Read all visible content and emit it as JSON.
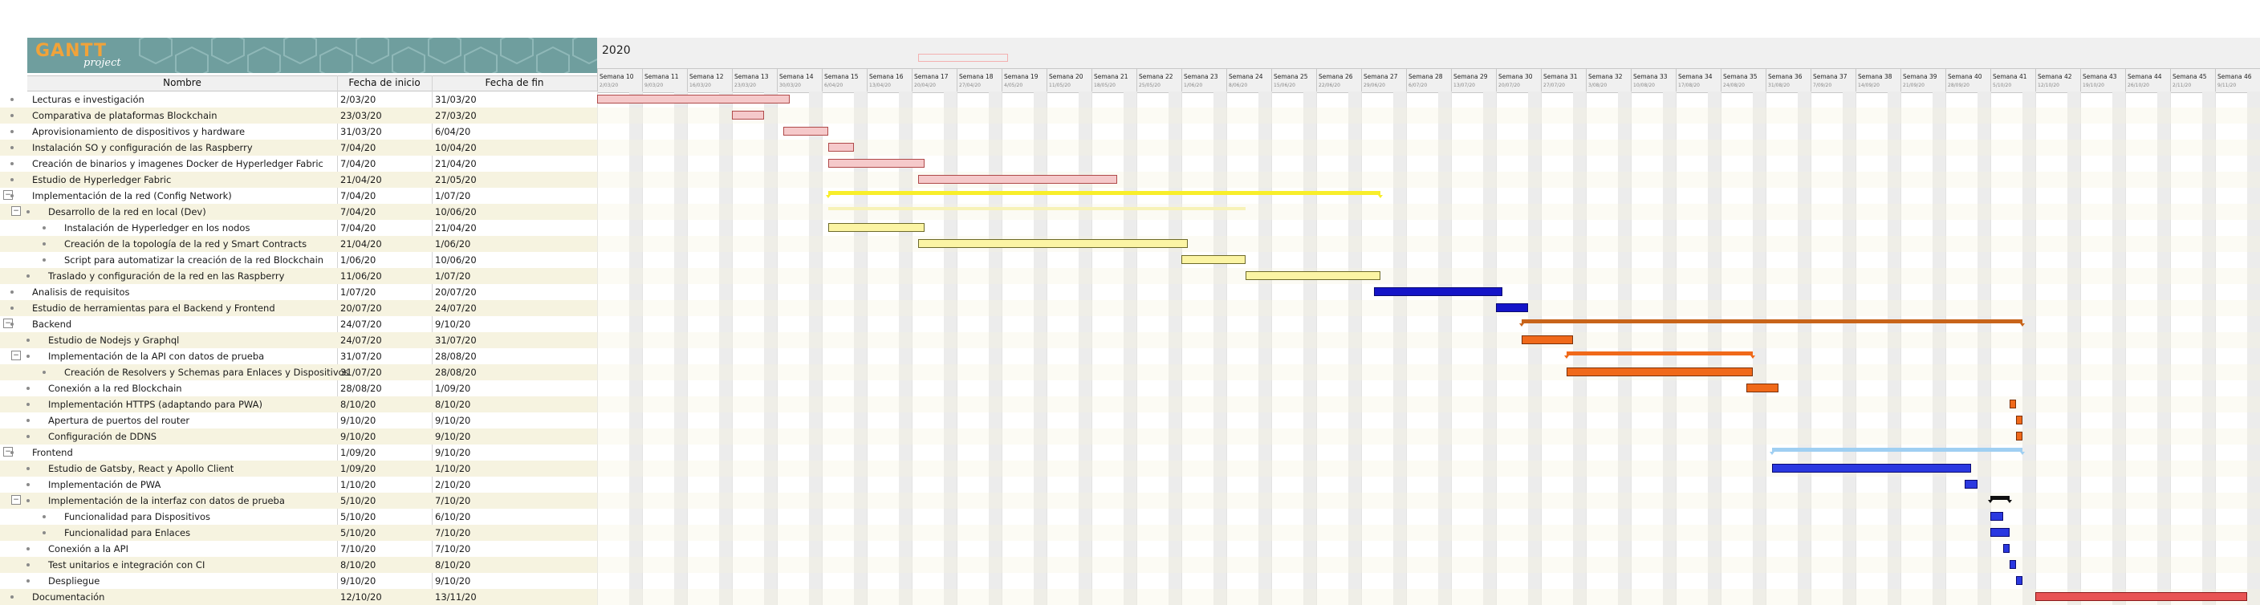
{
  "app": {
    "logo_main": "GANTT",
    "logo_sub": "project"
  },
  "table": {
    "headers": {
      "name": "Nombre",
      "start": "Fecha de inicio",
      "end": "Fecha de fin"
    },
    "rows": [
      {
        "name": "Lecturas e investigación",
        "start": "2/03/20",
        "end": "31/03/20",
        "level": 0,
        "toggle": ""
      },
      {
        "name": "Comparativa de plataformas Blockchain",
        "start": "23/03/20",
        "end": "27/03/20",
        "level": 0,
        "toggle": ""
      },
      {
        "name": "Aprovisionamiento de dispositivos y hardware",
        "start": "31/03/20",
        "end": "6/04/20",
        "level": 0,
        "toggle": ""
      },
      {
        "name": "Instalación SO y configuración de las Raspberry",
        "start": "7/04/20",
        "end": "10/04/20",
        "level": 0,
        "toggle": ""
      },
      {
        "name": "Creación de binarios y imagenes Docker de Hyperledger Fabric",
        "start": "7/04/20",
        "end": "21/04/20",
        "level": 0,
        "toggle": ""
      },
      {
        "name": "Estudio de Hyperledger Fabric",
        "start": "21/04/20",
        "end": "21/05/20",
        "level": 0,
        "toggle": ""
      },
      {
        "name": "Implementación de la red (Config Network)",
        "start": "7/04/20",
        "end": "1/07/20",
        "level": 0,
        "toggle": "−"
      },
      {
        "name": "Desarrollo de la red en local (Dev)",
        "start": "7/04/20",
        "end": "10/06/20",
        "level": 1,
        "toggle": "−"
      },
      {
        "name": "Instalación de Hyperledger en los nodos",
        "start": "7/04/20",
        "end": "21/04/20",
        "level": 2,
        "toggle": ""
      },
      {
        "name": "Creación de la topología de la red y Smart Contracts",
        "start": "21/04/20",
        "end": "1/06/20",
        "level": 2,
        "toggle": ""
      },
      {
        "name": "Script para automatizar la creación de la red Blockchain",
        "start": "1/06/20",
        "end": "10/06/20",
        "level": 2,
        "toggle": ""
      },
      {
        "name": "Traslado y configuración de la red en las Raspberry",
        "start": "11/06/20",
        "end": "1/07/20",
        "level": 1,
        "toggle": ""
      },
      {
        "name": "Analisis de requisitos",
        "start": "1/07/20",
        "end": "20/07/20",
        "level": 0,
        "toggle": ""
      },
      {
        "name": "Estudio de herramientas para el Backend y Frontend",
        "start": "20/07/20",
        "end": "24/07/20",
        "level": 0,
        "toggle": ""
      },
      {
        "name": "Backend",
        "start": "24/07/20",
        "end": "9/10/20",
        "level": 0,
        "toggle": "−"
      },
      {
        "name": "Estudio de Nodejs y Graphql",
        "start": "24/07/20",
        "end": "31/07/20",
        "level": 1,
        "toggle": ""
      },
      {
        "name": "Implementación de la API con datos de prueba",
        "start": "31/07/20",
        "end": "28/08/20",
        "level": 1,
        "toggle": "−"
      },
      {
        "name": "Creación de Resolvers y Schemas para Enlaces y Dispositivos",
        "start": "31/07/20",
        "end": "28/08/20",
        "level": 2,
        "toggle": ""
      },
      {
        "name": "Conexión a la red Blockchain",
        "start": "28/08/20",
        "end": "1/09/20",
        "level": 1,
        "toggle": ""
      },
      {
        "name": "Implementación HTTPS (adaptando para PWA)",
        "start": "8/10/20",
        "end": "8/10/20",
        "level": 1,
        "toggle": ""
      },
      {
        "name": "Apertura de puertos del router",
        "start": "9/10/20",
        "end": "9/10/20",
        "level": 1,
        "toggle": ""
      },
      {
        "name": "Configuración de DDNS",
        "start": "9/10/20",
        "end": "9/10/20",
        "level": 1,
        "toggle": ""
      },
      {
        "name": "Frontend",
        "start": "1/09/20",
        "end": "9/10/20",
        "level": 0,
        "toggle": "−"
      },
      {
        "name": "Estudio de Gatsby, React y Apollo Client",
        "start": "1/09/20",
        "end": "1/10/20",
        "level": 1,
        "toggle": ""
      },
      {
        "name": "Implementación de PWA",
        "start": "1/10/20",
        "end": "2/10/20",
        "level": 1,
        "toggle": ""
      },
      {
        "name": "Implementación de la interfaz con datos de prueba",
        "start": "5/10/20",
        "end": "7/10/20",
        "level": 1,
        "toggle": "−"
      },
      {
        "name": "Funcionalidad para Dispositivos",
        "start": "5/10/20",
        "end": "6/10/20",
        "level": 2,
        "toggle": ""
      },
      {
        "name": "Funcionalidad para Enlaces",
        "start": "5/10/20",
        "end": "7/10/20",
        "level": 2,
        "toggle": ""
      },
      {
        "name": "Conexión a la API",
        "start": "7/10/20",
        "end": "7/10/20",
        "level": 1,
        "toggle": ""
      },
      {
        "name": "Test unitarios e integración con CI",
        "start": "8/10/20",
        "end": "8/10/20",
        "level": 1,
        "toggle": ""
      },
      {
        "name": "Despliegue",
        "start": "9/10/20",
        "end": "9/10/20",
        "level": 1,
        "toggle": ""
      },
      {
        "name": "Documentación",
        "start": "12/10/20",
        "end": "13/11/20",
        "level": 0,
        "toggle": ""
      }
    ]
  },
  "chart": {
    "year": "2020",
    "today_label": "",
    "weeks": [
      {
        "name": "Semana 10",
        "date": "2/03/20"
      },
      {
        "name": "Semana 11",
        "date": "9/03/20"
      },
      {
        "name": "Semana 12",
        "date": "16/03/20"
      },
      {
        "name": "Semana 13",
        "date": "23/03/20"
      },
      {
        "name": "Semana 14",
        "date": "30/03/20"
      },
      {
        "name": "Semana 15",
        "date": "6/04/20"
      },
      {
        "name": "Semana 16",
        "date": "13/04/20"
      },
      {
        "name": "Semana 17",
        "date": "20/04/20"
      },
      {
        "name": "Semana 18",
        "date": "27/04/20"
      },
      {
        "name": "Semana 19",
        "date": "4/05/20"
      },
      {
        "name": "Semana 20",
        "date": "11/05/20"
      },
      {
        "name": "Semana 21",
        "date": "18/05/20"
      },
      {
        "name": "Semana 22",
        "date": "25/05/20"
      },
      {
        "name": "Semana 23",
        "date": "1/06/20"
      },
      {
        "name": "Semana 24",
        "date": "8/06/20"
      },
      {
        "name": "Semana 25",
        "date": "15/06/20"
      },
      {
        "name": "Semana 26",
        "date": "22/06/20"
      },
      {
        "name": "Semana 27",
        "date": "29/06/20"
      },
      {
        "name": "Semana 28",
        "date": "6/07/20"
      },
      {
        "name": "Semana 29",
        "date": "13/07/20"
      },
      {
        "name": "Semana 30",
        "date": "20/07/20"
      },
      {
        "name": "Semana 31",
        "date": "27/07/20"
      },
      {
        "name": "Semana 32",
        "date": "3/08/20"
      },
      {
        "name": "Semana 33",
        "date": "10/08/20"
      },
      {
        "name": "Semana 34",
        "date": "17/08/20"
      },
      {
        "name": "Semana 35",
        "date": "24/08/20"
      },
      {
        "name": "Semana 36",
        "date": "31/08/20"
      },
      {
        "name": "Semana 37",
        "date": "7/09/20"
      },
      {
        "name": "Semana 38",
        "date": "14/09/20"
      },
      {
        "name": "Semana 39",
        "date": "21/09/20"
      },
      {
        "name": "Semana 40",
        "date": "28/09/20"
      },
      {
        "name": "Semana 41",
        "date": "5/10/20"
      },
      {
        "name": "Semana 42",
        "date": "12/10/20"
      },
      {
        "name": "Semana 43",
        "date": "19/10/20"
      },
      {
        "name": "Semana 44",
        "date": "26/10/20"
      },
      {
        "name": "Semana 45",
        "date": "2/11/20"
      },
      {
        "name": "Semana 46",
        "date": "9/11/20"
      }
    ],
    "tasks": [
      {
        "row": 0,
        "kind": "bar",
        "fill": "#f5c9ca",
        "stroke": "#b04a4a"
      },
      {
        "row": 1,
        "kind": "bar",
        "fill": "#f5c9ca",
        "stroke": "#b04a4a"
      },
      {
        "row": 2,
        "kind": "bar",
        "fill": "#f5c9ca",
        "stroke": "#b04a4a"
      },
      {
        "row": 3,
        "kind": "bar",
        "fill": "#f5c9ca",
        "stroke": "#b04a4a"
      },
      {
        "row": 4,
        "kind": "bar",
        "fill": "#f5c9ca",
        "stroke": "#b04a4a"
      },
      {
        "row": 5,
        "kind": "bar",
        "fill": "#f5c9ca",
        "stroke": "#b04a4a"
      },
      {
        "row": 6,
        "kind": "sum",
        "fill": "#f8ee2a",
        "stroke": "#f8ee2a"
      },
      {
        "row": 7,
        "kind": "ghost",
        "fill": "#f7f2b8",
        "stroke": "#f7f2b8"
      },
      {
        "row": 8,
        "kind": "bar",
        "fill": "#fbf4a4",
        "stroke": "#6d6a2a"
      },
      {
        "row": 9,
        "kind": "bar",
        "fill": "#fbf4a4",
        "stroke": "#6d6a2a"
      },
      {
        "row": 10,
        "kind": "bar",
        "fill": "#fbf4a4",
        "stroke": "#6d6a2a"
      },
      {
        "row": 11,
        "kind": "bar",
        "fill": "#fbf4a4",
        "stroke": "#6d6a2a"
      },
      {
        "row": 12,
        "kind": "bar",
        "fill": "#1414c8",
        "stroke": "#0a0a70"
      },
      {
        "row": 13,
        "kind": "bar",
        "fill": "#1414c8",
        "stroke": "#0a0a70"
      },
      {
        "row": 14,
        "kind": "sum",
        "fill": "#c8641a",
        "stroke": "#c8641a"
      },
      {
        "row": 15,
        "kind": "bar",
        "fill": "#f0691a",
        "stroke": "#7a3008"
      },
      {
        "row": 16,
        "kind": "sum",
        "fill": "#f0691a",
        "stroke": "#f0691a"
      },
      {
        "row": 17,
        "kind": "bar",
        "fill": "#f0691a",
        "stroke": "#7a3008"
      },
      {
        "row": 18,
        "kind": "bar",
        "fill": "#f0691a",
        "stroke": "#7a3008"
      },
      {
        "row": 19,
        "kind": "bar",
        "fill": "#f0691a",
        "stroke": "#7a3008"
      },
      {
        "row": 20,
        "kind": "bar",
        "fill": "#f0691a",
        "stroke": "#7a3008"
      },
      {
        "row": 21,
        "kind": "bar",
        "fill": "#f0691a",
        "stroke": "#7a3008"
      },
      {
        "row": 22,
        "kind": "sum",
        "fill": "#9fcff2",
        "stroke": "#9fcff2"
      },
      {
        "row": 23,
        "kind": "bar",
        "fill": "#2a38e0",
        "stroke": "#0a0a70"
      },
      {
        "row": 24,
        "kind": "bar",
        "fill": "#2a38e0",
        "stroke": "#0a0a70"
      },
      {
        "row": 25,
        "kind": "sum",
        "fill": "#111111",
        "stroke": "#111111"
      },
      {
        "row": 26,
        "kind": "bar",
        "fill": "#2a38e0",
        "stroke": "#0a0a70"
      },
      {
        "row": 27,
        "kind": "bar",
        "fill": "#2a38e0",
        "stroke": "#0a0a70"
      },
      {
        "row": 28,
        "kind": "bar",
        "fill": "#2a38e0",
        "stroke": "#0a0a70"
      },
      {
        "row": 29,
        "kind": "bar",
        "fill": "#2a38e0",
        "stroke": "#0a0a70"
      },
      {
        "row": 30,
        "kind": "bar",
        "fill": "#2a38e0",
        "stroke": "#0a0a70"
      },
      {
        "row": 31,
        "kind": "bar",
        "fill": "#e85454",
        "stroke": "#8a1a1a"
      }
    ]
  }
}
